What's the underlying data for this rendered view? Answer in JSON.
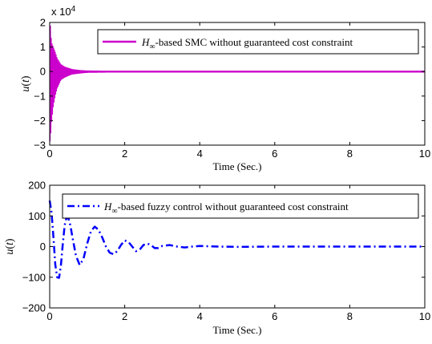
{
  "chart_data": [
    {
      "type": "line",
      "title": "",
      "xlabel": "Time (Sec.)",
      "ylabel_var": "u",
      "ylabel_arg": "t",
      "xlim": [
        0,
        10
      ],
      "ylim": [
        -3,
        2
      ],
      "y_scale_note_base": "x 10",
      "y_scale_note_exp": "4",
      "xticks": [
        0,
        2,
        4,
        6,
        8,
        10
      ],
      "yticks": [
        -3,
        -2,
        -1,
        0,
        1,
        2
      ],
      "grid": false,
      "legend_position": "top-right",
      "color": "#cc00cc",
      "line_style": "solid",
      "series": [
        {
          "name_sym": "H",
          "name_sub": "∞",
          "name_rest": "-based SMC without guaranteed cost constraint",
          "envelope": {
            "t": [
              0,
              0.02,
              0.05,
              0.1,
              0.15,
              0.2,
              0.3,
              0.4,
              0.5,
              0.6,
              0.8,
              1.0,
              1.5,
              2,
              3,
              4,
              5,
              6,
              7,
              8,
              9,
              10
            ],
            "upper": [
              2.0,
              1.9,
              1.2,
              1.0,
              0.8,
              0.55,
              0.3,
              0.2,
              0.15,
              0.1,
              0.06,
              0.04,
              0.03,
              0.03,
              0.03,
              0.03,
              0.03,
              0.03,
              0.03,
              0.03,
              0.03,
              0.03
            ],
            "lower": [
              -2.9,
              -2.8,
              -2.1,
              -1.4,
              -1.0,
              -0.7,
              -0.35,
              -0.25,
              -0.18,
              -0.12,
              -0.08,
              -0.05,
              -0.04,
              -0.04,
              -0.04,
              -0.04,
              -0.04,
              -0.04,
              -0.04,
              -0.04,
              -0.04,
              -0.04
            ]
          }
        }
      ]
    },
    {
      "type": "line",
      "title": "",
      "xlabel": "Time (Sec.)",
      "ylabel_var": "u",
      "ylabel_arg": "t",
      "xlim": [
        0,
        10
      ],
      "ylim": [
        -200,
        200
      ],
      "xticks": [
        0,
        2,
        4,
        6,
        8,
        10
      ],
      "yticks": [
        -200,
        -100,
        0,
        100,
        200
      ],
      "grid": false,
      "legend_position": "top-right",
      "color": "#0000ff",
      "line_style": "dash-dot",
      "series": [
        {
          "name_sym": "H",
          "name_sub": "∞",
          "name_rest": "-based fuzzy control without guaranteed cost constraint",
          "x": [
            0,
            0.05,
            0.1,
            0.15,
            0.2,
            0.25,
            0.3,
            0.35,
            0.4,
            0.45,
            0.5,
            0.55,
            0.6,
            0.7,
            0.8,
            0.9,
            1.0,
            1.1,
            1.2,
            1.3,
            1.4,
            1.5,
            1.6,
            1.7,
            1.8,
            1.9,
            2.0,
            2.1,
            2.2,
            2.3,
            2.4,
            2.5,
            2.6,
            2.7,
            2.8,
            2.9,
            3.0,
            3.2,
            3.4,
            3.6,
            3.8,
            4.0,
            4.5,
            5.0,
            6.0,
            7.0,
            8.0,
            9.0,
            10.0
          ],
          "y": [
            150,
            110,
            30,
            -60,
            -100,
            -102,
            -60,
            10,
            70,
            95,
            92,
            70,
            35,
            -30,
            -60,
            -40,
            10,
            50,
            65,
            55,
            30,
            0,
            -20,
            -25,
            -15,
            5,
            20,
            15,
            0,
            -15,
            -10,
            5,
            10,
            5,
            -5,
            -5,
            2,
            5,
            0,
            -3,
            0,
            2,
            0,
            -1,
            0,
            0,
            0,
            0,
            0
          ]
        }
      ]
    }
  ]
}
